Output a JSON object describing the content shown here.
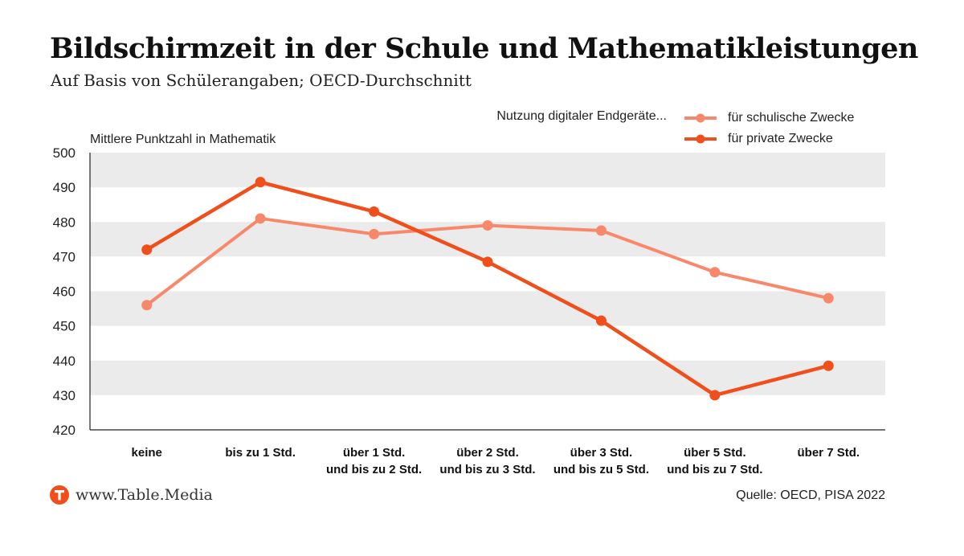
{
  "header": {
    "title": "Bildschirmzeit in der Schule und Mathematikleistungen",
    "subtitle": "Auf Basis von Schülerangaben; OECD-Durchschnitt"
  },
  "legend": {
    "intro": "Nutzung digitaler Endgeräte..."
  },
  "footer": {
    "brand": "www.Table.Media",
    "source": "Quelle: OECD, PISA 2022"
  },
  "colors": {
    "series_school": "#f8886a",
    "series_private": "#f04e1a",
    "band": "#ebebeb",
    "axis": "#222222",
    "logo": "#f04e1a"
  },
  "chart_data": {
    "type": "line",
    "ylabel": "Mittlere Punktzahl in Mathematik",
    "xlabel": "",
    "ylim": [
      420,
      500
    ],
    "yticks": [
      420,
      430,
      440,
      450,
      460,
      470,
      480,
      490,
      500
    ],
    "grid": "alternating horizontal bands",
    "legend_position": "top-right",
    "categories": [
      [
        "keine"
      ],
      [
        "bis zu 1 Std."
      ],
      [
        "über 1 Std.",
        "und bis zu 2 Std."
      ],
      [
        "über 2 Std.",
        "und bis zu 3 Std."
      ],
      [
        "über 3 Std.",
        "und bis zu 5 Std."
      ],
      [
        "über 5 Std.",
        "und bis zu 7 Std."
      ],
      [
        "über 7 Std."
      ]
    ],
    "series": [
      {
        "name": "für schulische Zwecke",
        "color": "#f8886a",
        "values": [
          456,
          481,
          476.5,
          479,
          477.5,
          465.5,
          458
        ]
      },
      {
        "name": "für private Zwecke",
        "color": "#f04e1a",
        "values": [
          472,
          491.5,
          483,
          468.5,
          451.5,
          430,
          438.5
        ]
      }
    ]
  }
}
